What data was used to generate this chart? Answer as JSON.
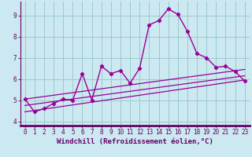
{
  "xlabel": "Windchill (Refroidissement éolien,°C)",
  "background_color": "#cce8f0",
  "line_color": "#990099",
  "grid_color": "#99cccc",
  "xlim": [
    -0.5,
    23.5
  ],
  "ylim": [
    3.8,
    9.65
  ],
  "xticks": [
    0,
    1,
    2,
    3,
    4,
    5,
    6,
    7,
    8,
    9,
    10,
    11,
    12,
    13,
    14,
    15,
    16,
    17,
    18,
    19,
    20,
    21,
    22,
    23
  ],
  "yticks": [
    4,
    5,
    6,
    7,
    8,
    9
  ],
  "main_series": [
    [
      0,
      5.05
    ],
    [
      1,
      4.45
    ],
    [
      2,
      4.6
    ],
    [
      3,
      4.85
    ],
    [
      4,
      5.05
    ],
    [
      5,
      5.0
    ],
    [
      6,
      6.25
    ],
    [
      7,
      5.0
    ],
    [
      8,
      6.6
    ],
    [
      9,
      6.25
    ],
    [
      10,
      6.4
    ],
    [
      11,
      5.8
    ],
    [
      12,
      6.5
    ],
    [
      13,
      8.55
    ],
    [
      14,
      8.75
    ],
    [
      15,
      9.3
    ],
    [
      16,
      9.05
    ],
    [
      17,
      8.25
    ],
    [
      18,
      7.2
    ],
    [
      19,
      7.0
    ],
    [
      20,
      6.55
    ],
    [
      21,
      6.6
    ],
    [
      22,
      6.35
    ],
    [
      23,
      5.9
    ]
  ],
  "regression_lines": [
    {
      "x0": 0,
      "y0": 4.45,
      "x1": 23,
      "y1": 5.95
    },
    {
      "x0": 0,
      "y0": 4.75,
      "x1": 23,
      "y1": 6.15
    },
    {
      "x0": 0,
      "y0": 5.05,
      "x1": 23,
      "y1": 6.45
    }
  ],
  "font_color": "#660066",
  "axis_line_color": "#660066",
  "tick_fontsize": 5.5,
  "label_fontsize": 6.5
}
